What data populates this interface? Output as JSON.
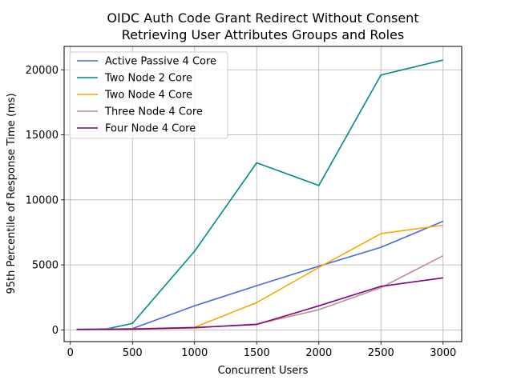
{
  "chart_data": {
    "type": "line",
    "title": [
      "OIDC Auth Code Grant Redirect Without Consent",
      "Retrieving User Attributes Groups and Roles"
    ],
    "xlabel": "Concurrent Users",
    "ylabel": "95th Percentile of Response Time (ms)",
    "xlim": [
      -50,
      3150
    ],
    "ylim": [
      -900,
      21800
    ],
    "xticks": [
      0,
      500,
      1000,
      1500,
      2000,
      2500,
      3000
    ],
    "yticks": [
      0,
      5000,
      10000,
      15000,
      20000
    ],
    "grid": true,
    "legend_position": "top-left",
    "series": [
      {
        "name": "Active Passive 4 Core",
        "color": "#4169e1",
        "x": [
          50,
          100,
          200,
          300,
          500,
          1000,
          1500,
          2000,
          2500,
          3000
        ],
        "y": [
          40,
          45,
          50,
          60,
          100,
          1850,
          3400,
          4900,
          6350,
          8350
        ]
      },
      {
        "name": "Two Node 2 Core",
        "color": "#008b8b",
        "x": [
          50,
          100,
          200,
          300,
          500,
          1000,
          1500,
          2000,
          2500,
          3000
        ],
        "y": [
          40,
          45,
          60,
          90,
          500,
          6050,
          12850,
          11100,
          19600,
          20750
        ]
      },
      {
        "name": "Two Node 4 Core",
        "color": "#ffa500",
        "x": [
          50,
          100,
          200,
          300,
          500,
          1000,
          1500,
          2000,
          2500,
          3000
        ],
        "y": [
          40,
          45,
          50,
          55,
          80,
          200,
          2100,
          4800,
          7400,
          8050
        ]
      },
      {
        "name": "Three Node 4 Core",
        "color": "#bc8f8f",
        "x": [
          50,
          100,
          200,
          300,
          500,
          1000,
          1500,
          2000,
          2500,
          3000
        ],
        "y": [
          30,
          35,
          40,
          45,
          60,
          150,
          450,
          1550,
          3250,
          5700
        ]
      },
      {
        "name": "Four Node 4 Core",
        "color": "#800080",
        "x": [
          50,
          100,
          200,
          300,
          500,
          1000,
          1500,
          2000,
          2500,
          3000
        ],
        "y": [
          30,
          35,
          40,
          45,
          60,
          180,
          420,
          1850,
          3350,
          4000
        ]
      }
    ]
  }
}
